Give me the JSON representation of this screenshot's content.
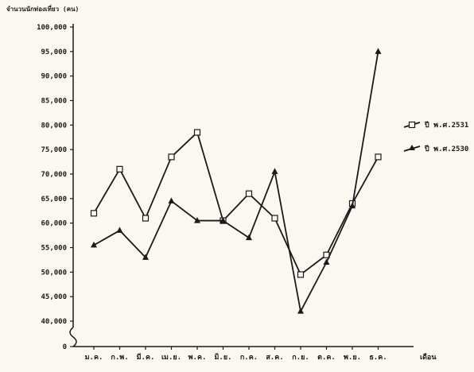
{
  "chart_data": {
    "type": "line",
    "title": "จำนวนนักท่องเที่ยว (คน)",
    "xlabel": "เดือน",
    "ylabel": "",
    "categories": [
      "ม.ค.",
      "ก.พ.",
      "มี.ค.",
      "เม.ย.",
      "พ.ค.",
      "มิ.ย.",
      "ก.ค.",
      "ส.ค.",
      "ก.ย.",
      "ต.ค.",
      "พ.ย.",
      "ธ.ค."
    ],
    "y_ticks": [
      {
        "value": 0,
        "label": "0"
      },
      {
        "value": 40000,
        "label": "40,000"
      },
      {
        "value": 45000,
        "label": "45,000"
      },
      {
        "value": 50000,
        "label": "50,000"
      },
      {
        "value": 55000,
        "label": "55,000"
      },
      {
        "value": 60000,
        "label": "60,000"
      },
      {
        "value": 65000,
        "label": "65,000"
      },
      {
        "value": 70000,
        "label": "70,000"
      },
      {
        "value": 75000,
        "label": "75,000"
      },
      {
        "value": 80000,
        "label": "80,000"
      },
      {
        "value": 85000,
        "label": "85,000"
      },
      {
        "value": 90000,
        "label": "90,000"
      },
      {
        "value": 95000,
        "label": "95,000"
      },
      {
        "value": 100000,
        "label": "100,000"
      }
    ],
    "ylim": [
      40000,
      100000
    ],
    "axis_break": true,
    "grid": false,
    "legend_position": "right",
    "series": [
      {
        "name": "ปี พ.ศ.2531",
        "marker": "square",
        "values": [
          62000,
          71000,
          61000,
          73500,
          78500,
          60500,
          66000,
          61000,
          49500,
          53500,
          64000,
          73500
        ]
      },
      {
        "name": "ปี พ.ศ.2530",
        "marker": "triangle",
        "values": [
          55500,
          58500,
          53000,
          64500,
          60500,
          60500,
          57000,
          70500,
          42000,
          52000,
          63500,
          95000
        ]
      }
    ]
  }
}
